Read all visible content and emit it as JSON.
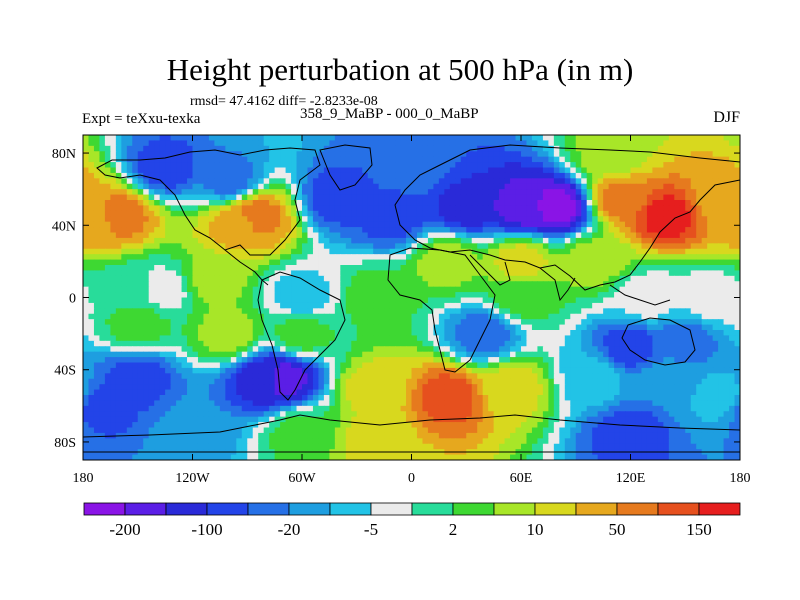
{
  "header": {
    "title": "Height perturbation at 500 hPa (in m)",
    "subtitle": "rmsd= 47.4162 diff= -2.8233e-08",
    "left_label": "Expt = teXxu-texka",
    "center_label": "358_9_MaBP - 000_0_MaBP",
    "right_label": "DJF"
  },
  "chart_data": {
    "type": "heatmap",
    "title": "Height perturbation at 500 hPa (in m)",
    "xlim": [
      -180,
      180
    ],
    "ylim": [
      -90,
      90
    ],
    "x_ticks": [
      {
        "value": -180,
        "label": "180"
      },
      {
        "value": -120,
        "label": "120W"
      },
      {
        "value": -60,
        "label": "60W"
      },
      {
        "value": 0,
        "label": "0"
      },
      {
        "value": 60,
        "label": "60E"
      },
      {
        "value": 120,
        "label": "120E"
      },
      {
        "value": 180,
        "label": "180"
      }
    ],
    "y_ticks": [
      {
        "value": 80,
        "label": "80N"
      },
      {
        "value": 40,
        "label": "40N"
      },
      {
        "value": 0,
        "label": "0"
      },
      {
        "value": -40,
        "label": "40S"
      },
      {
        "value": -80,
        "label": "80S"
      }
    ],
    "colorbar": {
      "colors": [
        "#8a14e6",
        "#5b1ee6",
        "#2a2ad8",
        "#2344e8",
        "#2670e6",
        "#1e9ee0",
        "#22c3e6",
        "#ebebeb",
        "#28dc9a",
        "#3ed832",
        "#a8e628",
        "#d8d81e",
        "#e6a81e",
        "#e67a1e",
        "#e6501e",
        "#e61e1e"
      ],
      "labels": [
        {
          "boundary": 1,
          "text": "-200"
        },
        {
          "boundary": 3,
          "text": "-100"
        },
        {
          "boundary": 5,
          "text": "-20"
        },
        {
          "boundary": 7,
          "text": "-5"
        },
        {
          "boundary": 9,
          "text": "2"
        },
        {
          "boundary": 11,
          "text": "10"
        },
        {
          "boundary": 13,
          "text": "50"
        },
        {
          "boundary": 15,
          "text": "150"
        }
      ]
    },
    "field": [
      {
        "lon": -160,
        "lat": 45,
        "level": 13
      },
      {
        "lon": -175,
        "lat": 42,
        "level": 12
      },
      {
        "lon": -85,
        "lat": 45,
        "level": 13
      },
      {
        "lon": -95,
        "lat": 40,
        "level": 12
      },
      {
        "lon": -110,
        "lat": 10,
        "level": 10
      },
      {
        "lon": -155,
        "lat": 5,
        "level": 8
      },
      {
        "lon": -135,
        "lat": 5,
        "level": 7
      },
      {
        "lon": -60,
        "lat": 0,
        "level": 6
      },
      {
        "lon": -20,
        "lat": 0,
        "level": 9
      },
      {
        "lon": -150,
        "lat": -15,
        "level": 9
      },
      {
        "lon": -100,
        "lat": 65,
        "level": 4
      },
      {
        "lon": -135,
        "lat": 72,
        "level": 3
      },
      {
        "lon": -40,
        "lat": 55,
        "level": 3
      },
      {
        "lon": -10,
        "lat": 45,
        "level": 3
      },
      {
        "lon": 30,
        "lat": 50,
        "level": 2
      },
      {
        "lon": 60,
        "lat": 50,
        "level": 1
      },
      {
        "lon": 80,
        "lat": 50,
        "level": 0
      },
      {
        "lon": 0,
        "lat": 72,
        "level": 4
      },
      {
        "lon": 140,
        "lat": 45,
        "level": 15
      },
      {
        "lon": 115,
        "lat": 55,
        "level": 13
      },
      {
        "lon": 170,
        "lat": 55,
        "level": 12
      },
      {
        "lon": 110,
        "lat": 78,
        "level": 10
      },
      {
        "lon": 60,
        "lat": 20,
        "level": 11
      },
      {
        "lon": 20,
        "lat": 20,
        "level": 10
      },
      {
        "lon": 100,
        "lat": 20,
        "level": 10
      },
      {
        "lon": 60,
        "lat": 0,
        "level": 9
      },
      {
        "lon": 130,
        "lat": 0,
        "level": 7
      },
      {
        "lon": 165,
        "lat": 0,
        "level": 7
      },
      {
        "lon": 40,
        "lat": -20,
        "level": 4
      },
      {
        "lon": 120,
        "lat": -28,
        "level": 3
      },
      {
        "lon": 150,
        "lat": -25,
        "level": 4
      },
      {
        "lon": -60,
        "lat": -20,
        "level": 9
      },
      {
        "lon": -100,
        "lat": -20,
        "level": 10
      },
      {
        "lon": -150,
        "lat": -45,
        "level": 3
      },
      {
        "lon": -170,
        "lat": -60,
        "level": 3
      },
      {
        "lon": -80,
        "lat": -45,
        "level": 2
      },
      {
        "lon": -70,
        "lat": -45,
        "level": 1
      },
      {
        "lon": -20,
        "lat": -50,
        "level": 11
      },
      {
        "lon": 20,
        "lat": -55,
        "level": 14
      },
      {
        "lon": 55,
        "lat": -50,
        "level": 11
      },
      {
        "lon": 100,
        "lat": -45,
        "level": 6
      },
      {
        "lon": 140,
        "lat": -45,
        "level": 5
      },
      {
        "lon": 170,
        "lat": -55,
        "level": 6
      },
      {
        "lon": 120,
        "lat": -75,
        "level": 3
      },
      {
        "lon": -120,
        "lat": -75,
        "level": 5
      },
      {
        "lon": -20,
        "lat": -80,
        "level": 11
      },
      {
        "lon": -60,
        "lat": -75,
        "level": 9
      }
    ]
  }
}
